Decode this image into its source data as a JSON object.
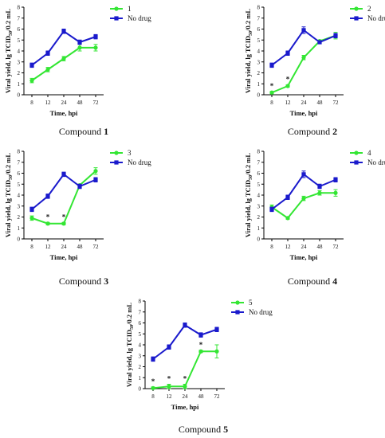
{
  "figure": {
    "xlabel": "Time, hpi",
    "ylabel_main": "Viral yield, lg TCID",
    "ylabel_sub": "50",
    "ylabel_end": "/0.2 mL",
    "caption_prefix": "Compound ",
    "colors": {
      "drug": "#33e633",
      "no_drug": "#1a1acc",
      "axis": "#000000"
    }
  },
  "chart_data": [
    {
      "type": "line",
      "categories": [
        "8",
        "12",
        "24",
        "48",
        "72"
      ],
      "yticks": [
        "0",
        "1",
        "2",
        "3",
        "4",
        "5",
        "6",
        "7",
        "8"
      ],
      "ylim": [
        0,
        8
      ],
      "series": [
        {
          "name": "1",
          "values": [
            1.3,
            2.3,
            3.3,
            4.3,
            4.3
          ],
          "errors": [
            0.2,
            0.2,
            0.2,
            0.3,
            0.3
          ]
        },
        {
          "name": "No drug",
          "values": [
            2.7,
            3.8,
            5.8,
            4.8,
            5.3
          ],
          "errors": [
            0.2,
            0.2,
            0.2,
            0.2,
            0.2
          ]
        }
      ],
      "significance": [
        "",
        "",
        "",
        "",
        ""
      ],
      "caption_number": "1"
    },
    {
      "type": "line",
      "categories": [
        "8",
        "12",
        "24",
        "48",
        "72"
      ],
      "yticks": [
        "0",
        "1",
        "2",
        "3",
        "4",
        "5",
        "6",
        "7",
        "8"
      ],
      "ylim": [
        0,
        8
      ],
      "series": [
        {
          "name": "2",
          "values": [
            0.2,
            0.8,
            3.4,
            4.9,
            5.4
          ],
          "errors": [
            0.1,
            0.1,
            0.2,
            0.1,
            0.3
          ]
        },
        {
          "name": "No drug",
          "values": [
            2.7,
            3.8,
            5.9,
            4.8,
            5.4
          ],
          "errors": [
            0.2,
            0.2,
            0.3,
            0.1,
            0.2
          ]
        }
      ],
      "significance": [
        "*",
        "*",
        "",
        "",
        ""
      ],
      "caption_number": "2"
    },
    {
      "type": "line",
      "categories": [
        "8",
        "12",
        "24",
        "48",
        "72"
      ],
      "yticks": [
        "0",
        "1",
        "2",
        "3",
        "4",
        "5",
        "6",
        "7",
        "8"
      ],
      "ylim": [
        0,
        8
      ],
      "series": [
        {
          "name": "3",
          "values": [
            1.9,
            1.4,
            1.4,
            4.9,
            6.2
          ],
          "errors": [
            0.2,
            0.1,
            0.1,
            0.1,
            0.3
          ]
        },
        {
          "name": "No drug",
          "values": [
            2.7,
            3.9,
            5.9,
            4.8,
            5.4
          ],
          "errors": [
            0.2,
            0.2,
            0.2,
            0.2,
            0.2
          ]
        }
      ],
      "significance": [
        "",
        "*",
        "*",
        "",
        ""
      ],
      "caption_number": "3"
    },
    {
      "type": "line",
      "categories": [
        "8",
        "12",
        "24",
        "48",
        "72"
      ],
      "yticks": [
        "0",
        "1",
        "2",
        "3",
        "4",
        "5",
        "6",
        "7",
        "8"
      ],
      "ylim": [
        0,
        8
      ],
      "series": [
        {
          "name": "4",
          "values": [
            2.9,
            1.9,
            3.7,
            4.2,
            4.2
          ],
          "errors": [
            0.2,
            0.1,
            0.2,
            0.2,
            0.3
          ]
        },
        {
          "name": "No drug",
          "values": [
            2.7,
            3.8,
            5.9,
            4.8,
            5.4
          ],
          "errors": [
            0.2,
            0.2,
            0.3,
            0.2,
            0.2
          ]
        }
      ],
      "significance": [
        "",
        "",
        "",
        "",
        ""
      ],
      "caption_number": "4"
    },
    {
      "type": "line",
      "categories": [
        "8",
        "12",
        "24",
        "48",
        "72"
      ],
      "yticks": [
        "0",
        "1",
        "2",
        "3",
        "4",
        "5",
        "6",
        "7",
        "8"
      ],
      "ylim": [
        0,
        8
      ],
      "series": [
        {
          "name": "5",
          "values": [
            0.05,
            0.2,
            0.2,
            3.4,
            3.4
          ],
          "errors": [
            0.1,
            0.2,
            0.2,
            0.1,
            0.6
          ]
        },
        {
          "name": "No drug",
          "values": [
            2.7,
            3.8,
            5.8,
            4.9,
            5.4
          ],
          "errors": [
            0.2,
            0.2,
            0.2,
            0.2,
            0.2
          ]
        }
      ],
      "significance": [
        "*",
        "*",
        "*",
        "*",
        ""
      ],
      "caption_number": "5"
    }
  ]
}
